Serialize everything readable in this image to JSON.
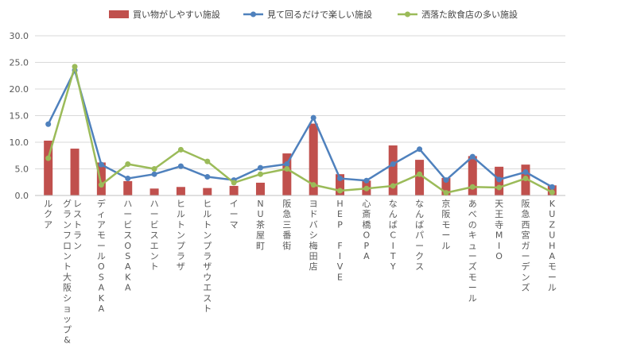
{
  "chart_data": {
    "type": "bar",
    "categories": [
      "ルクア",
      "グランフロント大阪ショップ&レストラン",
      "ディアモールOSAKA",
      "ハービスOSAKA",
      "ハービスエント",
      "ヒルトンプラザ",
      "ヒルトンプラザウエスト",
      "イーマ",
      "NU茶屋町",
      "阪急三番街",
      "ヨドバシ梅田店",
      "HEP FIVE",
      "心斎橋OPA",
      "なんばCITY",
      "なんばパークス",
      "京阪モール",
      "あべのキューズモール",
      "天王寺MIO",
      "阪急西宮ガーデンズ",
      "KUZUHAモール"
    ],
    "series": [
      {
        "name": "買い物がしやすい施設",
        "kind": "bar",
        "color": "#c0504d",
        "values": [
          10.3,
          8.8,
          6.2,
          2.7,
          1.3,
          1.6,
          1.4,
          1.8,
          2.4,
          7.9,
          13.5,
          4.0,
          2.8,
          9.4,
          6.7,
          3.3,
          7.4,
          5.4,
          5.8,
          1.9
        ]
      },
      {
        "name": "見て回るだけで楽しい施設",
        "kind": "line",
        "color": "#4f81bd",
        "values": [
          13.4,
          23.5,
          5.8,
          3.2,
          4.0,
          5.5,
          3.5,
          2.9,
          5.2,
          5.9,
          14.6,
          3.2,
          2.8,
          5.9,
          8.7,
          2.9,
          7.3,
          3.0,
          4.4,
          1.6
        ]
      },
      {
        "name": "洒落た飲食店の多い施設",
        "kind": "line",
        "color": "#9bbb59",
        "values": [
          7.0,
          24.2,
          2.0,
          5.9,
          5.0,
          8.6,
          6.4,
          2.4,
          4.0,
          5.0,
          2.0,
          0.9,
          1.3,
          1.8,
          4.0,
          0.5,
          1.6,
          1.5,
          3.2,
          0.6
        ]
      }
    ],
    "ylim": [
      0,
      30
    ],
    "yticks": [
      "0.0",
      "5.0",
      "10.0",
      "15.0",
      "20.0",
      "25.0",
      "30.0"
    ],
    "grid": true,
    "legend_position": "top",
    "title": "",
    "xlabel": "",
    "ylabel": ""
  }
}
